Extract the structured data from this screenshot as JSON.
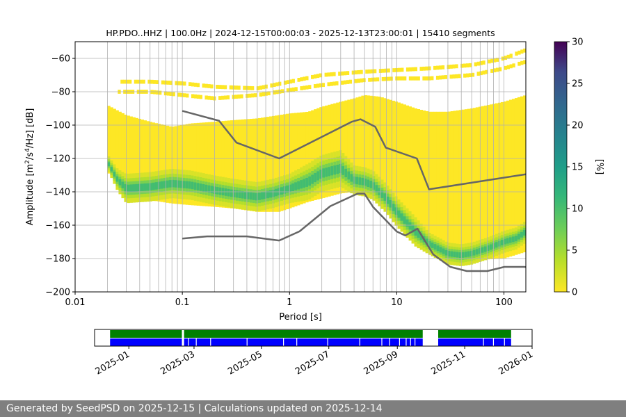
{
  "chart_data": [
    {
      "type": "heatmap",
      "title": "HP.PDO..HHZ | 100.0Hz | 2024-12-15T00:00:03 - 2025-12-13T23:00:01 | 15410 segments",
      "xlabel": "Period [s]",
      "ylabel_parts": [
        "Amplitude [m",
        "2",
        "/s",
        "4",
        "/Hz] [dB]"
      ],
      "x_scale": "log",
      "xlim": [
        0.01,
        160
      ],
      "ylim": [
        -200,
        -50
      ],
      "x_ticks": [
        0.01,
        0.1,
        1,
        10,
        100
      ],
      "x_tick_labels": [
        "0.01",
        "0.1",
        "1",
        "10",
        "100"
      ],
      "y_ticks": [
        -200,
        -180,
        -160,
        -140,
        -120,
        -100,
        -80,
        -60
      ],
      "y_tick_labels": [
        "−200",
        "−180",
        "−160",
        "−140",
        "−120",
        "−100",
        "−80",
        "−60"
      ],
      "grid": true,
      "colorbar": {
        "label": "[%]",
        "range": [
          0,
          30
        ],
        "ticks": [
          0,
          5,
          10,
          15,
          20,
          25,
          30
        ],
        "tick_labels": [
          "0",
          "5",
          "10",
          "15",
          "20",
          "25",
          "30"
        ],
        "colormap": "viridis"
      },
      "mode_curve": {
        "periods": [
          0.02,
          0.025,
          0.03,
          0.05,
          0.08,
          0.12,
          0.2,
          0.3,
          0.5,
          0.7,
          1.0,
          1.5,
          2.0,
          3.0,
          4.0,
          5.0,
          6.0,
          8.0,
          10.0,
          15.0,
          20.0,
          30.0,
          40.0,
          50.0,
          70.0,
          100.0,
          130.0,
          160.0
        ],
        "amplitudes": [
          -122,
          -133,
          -138,
          -137,
          -135,
          -136,
          -139,
          -141,
          -143,
          -141,
          -138,
          -134,
          -129,
          -126,
          -133,
          -134,
          -136,
          -144,
          -152,
          -164,
          -171,
          -177,
          -178,
          -177,
          -174,
          -170,
          -168,
          -164
        ],
        "widths": [
          2,
          3,
          4,
          4,
          4,
          4,
          4,
          4,
          4,
          4,
          4,
          5,
          5,
          5,
          4,
          4,
          4,
          4,
          4,
          4,
          3,
          3,
          3,
          3,
          3,
          3,
          3,
          3
        ]
      },
      "data_envelope": {
        "periods": [
          0.02,
          0.03,
          0.05,
          0.08,
          0.12,
          0.2,
          0.3,
          0.5,
          0.8,
          1.0,
          1.5,
          2.0,
          3.0,
          4.0,
          5.0,
          7.0,
          10.0,
          15.0,
          20.0,
          30.0,
          50.0,
          100.0,
          160.0
        ],
        "upper": [
          -88,
          -94,
          -98,
          -101,
          -99,
          -98,
          -97,
          -96,
          -94,
          -93,
          -92,
          -89,
          -86,
          -84,
          -82,
          -83,
          -86,
          -90,
          -92,
          -92,
          -90,
          -86,
          -82
        ],
        "lower": [
          -128,
          -142,
          -145,
          -147,
          -148,
          -149,
          -150,
          -152,
          -152,
          -150,
          -146,
          -144,
          -141,
          -140,
          -140,
          -148,
          -158,
          -168,
          -174,
          -179,
          -181,
          -180,
          -176
        ]
      },
      "sparse_bands": [
        {
          "periods": [
            0.02,
            0.05,
            0.1,
            0.2,
            0.5,
            1.0,
            2.0,
            5.0,
            10.0,
            20.0,
            50.0,
            100.0,
            160.0
          ],
          "amplitudes": [
            -74,
            -74,
            -75,
            -77,
            -78,
            -74,
            -70,
            -68,
            -67,
            -66,
            -64,
            -60,
            -55
          ]
        },
        {
          "periods": [
            0.02,
            0.05,
            0.1,
            0.2,
            0.5,
            1.0,
            2.0,
            5.0,
            10.0,
            20.0,
            50.0,
            100.0,
            160.0
          ],
          "amplitudes": [
            -80,
            -80,
            -82,
            -84,
            -82,
            -79,
            -76,
            -73,
            -72,
            -72,
            -70,
            -66,
            -62
          ]
        }
      ],
      "nhnm": {
        "periods": [
          0.1,
          0.22,
          0.32,
          0.8,
          3.8,
          4.6,
          6.3,
          7.9,
          15.4,
          20.0,
          354.8
        ],
        "amplitudes": [
          -91.5,
          -97.4,
          -110.5,
          -120.0,
          -98.0,
          -96.5,
          -101.0,
          -113.5,
          -120.0,
          -138.5,
          -126.0
        ]
      },
      "nlnm": {
        "periods": [
          0.1,
          0.17,
          0.4,
          0.8,
          1.24,
          2.4,
          4.3,
          5.0,
          6.0,
          10.0,
          12.0,
          15.6,
          21.9,
          31.6,
          45.0,
          70.0,
          101.0,
          154.0,
          328.0
        ],
        "amplitudes": [
          -168.0,
          -166.7,
          -166.7,
          -169.2,
          -163.7,
          -148.6,
          -141.1,
          -141.1,
          -149.0,
          -163.8,
          -166.2,
          -162.1,
          -177.5,
          -185.0,
          -187.5,
          -187.5,
          -185.0,
          -185.0,
          -187.5
        ]
      },
      "line_color": "#666666"
    },
    {
      "type": "timeline",
      "x_range": [
        "2024-12-01",
        "2026-01-01"
      ],
      "x_tick_labels": [
        "2025-01",
        "2025-03",
        "2025-05",
        "2025-07",
        "2025-09",
        "2025-11",
        "2026-01"
      ],
      "x_tick_dates": [
        "2025-01-01",
        "2025-03-01",
        "2025-05-01",
        "2025-07-01",
        "2025-09-01",
        "2025-11-01",
        "2026-01-01"
      ],
      "rows": [
        {
          "color": "#008000",
          "intervals": [
            [
              "2024-12-15",
              "2025-02-18"
            ],
            [
              "2025-02-20",
              "2025-09-24"
            ],
            [
              "2025-10-08",
              "2025-12-13"
            ]
          ]
        },
        {
          "color": "#0000ff",
          "intervals": [
            [
              "2024-12-15",
              "2025-02-18"
            ],
            [
              "2025-02-20",
              "2025-09-24"
            ],
            [
              "2025-10-08",
              "2025-12-13"
            ]
          ],
          "gaps": [
            "2025-02-24",
            "2025-03-03",
            "2025-03-16",
            "2025-04-18",
            "2025-05-21",
            "2025-06-02",
            "2025-06-30",
            "2025-07-29",
            "2025-08-18",
            "2025-08-25",
            "2025-09-03",
            "2025-09-09",
            "2025-09-13",
            "2025-09-17",
            "2025-11-18",
            "2025-11-27",
            "2025-12-07"
          ]
        }
      ]
    }
  ],
  "footer": {
    "text": "Generated by SeedPSD on 2025-12-15 | Calculations updated on 2025-12-14"
  }
}
